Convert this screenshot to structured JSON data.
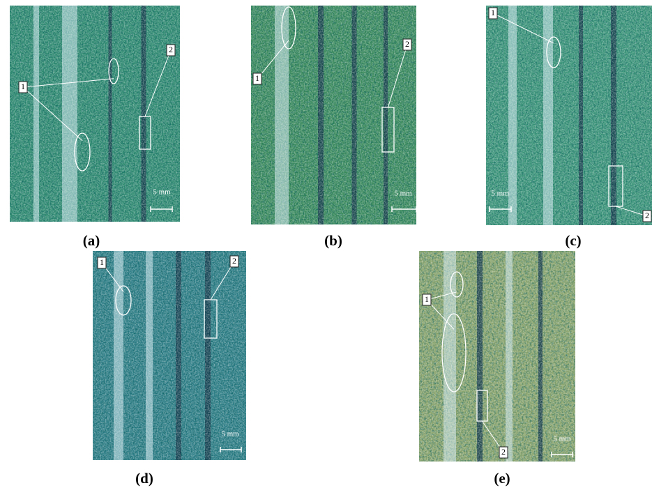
{
  "figure": {
    "panels": [
      {
        "caption": "(a)",
        "marker_1": "1",
        "marker_2": "2",
        "scale": "5 mm"
      },
      {
        "caption": "(b)",
        "marker_1": "1",
        "marker_2": "2",
        "scale": "5 mm"
      },
      {
        "caption": "(c)",
        "marker_1": "1",
        "marker_2": "2",
        "scale": "5 mm"
      },
      {
        "caption": "(d)",
        "marker_1": "1",
        "marker_2": "2",
        "scale": "5 mm"
      },
      {
        "caption": "(e)",
        "marker_1": "1",
        "marker_2": "2",
        "scale": "5 mm"
      }
    ]
  }
}
